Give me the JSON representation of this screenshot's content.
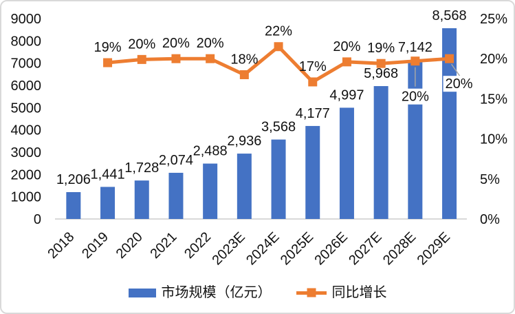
{
  "chart_data": {
    "type": "combo",
    "title": "",
    "categories": [
      "2018",
      "2019",
      "2020",
      "2021",
      "2022",
      "2023E",
      "2024E",
      "2025E",
      "2026E",
      "2027E",
      "2028E",
      "2029E"
    ],
    "series": [
      {
        "name": "市场规模（亿元）",
        "type": "bar",
        "axis": "left",
        "color": "#4472C4",
        "values": [
          1206,
          1441,
          1728,
          2074,
          2488,
          2936,
          3568,
          4177,
          4997,
          5968,
          7142,
          8568
        ],
        "labels": [
          "1,206",
          "1,441",
          "1,728",
          "2,074",
          "2,488",
          "2,936",
          "3,568",
          "4,177",
          "4,997",
          "5,968",
          "7,142",
          "8,568"
        ]
      },
      {
        "name": "同比增长",
        "type": "line",
        "axis": "right",
        "color": "#ED7D31",
        "start_index": 1,
        "values": [
          19,
          20,
          20,
          20,
          18,
          22,
          17,
          20,
          19,
          20,
          20
        ],
        "plotted_values": [
          19.5,
          19.9,
          20,
          20,
          18,
          21.5,
          17.1,
          19.6,
          19.4,
          19.7,
          20
        ],
        "labels": [
          "19%",
          "20%",
          "20%",
          "20%",
          "18%",
          "22%",
          "17%",
          "20%",
          "19%",
          "20%",
          "20%"
        ],
        "label_placement": [
          "above",
          "above",
          "above",
          "above",
          "above",
          "above",
          "above",
          "above",
          "above",
          "below",
          "below-right"
        ]
      }
    ],
    "left_axis": {
      "min": 0,
      "max": 9000,
      "step": 1000,
      "ticks": [
        "0",
        "1000",
        "2000",
        "3000",
        "4000",
        "5000",
        "6000",
        "7000",
        "8000",
        "9000"
      ]
    },
    "right_axis": {
      "min": 0,
      "max": 25,
      "step": 5,
      "ticks": [
        "0%",
        "5%",
        "10%",
        "15%",
        "20%",
        "25%"
      ]
    },
    "grid": false,
    "legend_position": "bottom",
    "axis_line_color": "#d9d9d9",
    "leader_line_color": "#a6a6a6",
    "text_color": "#111111"
  }
}
